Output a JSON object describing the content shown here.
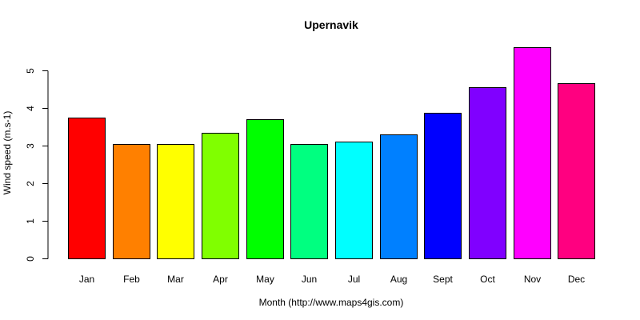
{
  "chart_data": {
    "type": "bar",
    "title": "Upernavik",
    "xlabel": "Month (http://www.maps4gis.com)",
    "ylabel": "Wind speed (m.s-1)",
    "categories": [
      "Jan",
      "Feb",
      "Mar",
      "Apr",
      "May",
      "Jun",
      "Jul",
      "Aug",
      "Sept",
      "Oct",
      "Nov",
      "Dec"
    ],
    "values": [
      3.75,
      3.05,
      3.05,
      3.35,
      3.7,
      3.05,
      3.1,
      3.3,
      3.88,
      4.55,
      5.62,
      4.65
    ],
    "colors": [
      "#FF0000",
      "#FF8000",
      "#FFFF00",
      "#80FF00",
      "#00FF00",
      "#00FF80",
      "#00FFFF",
      "#0080FF",
      "#0000FF",
      "#8000FF",
      "#FF00FF",
      "#FF0080"
    ],
    "yticks": [
      0,
      1,
      2,
      3,
      4,
      5
    ],
    "ylim": [
      0,
      5.62
    ],
    "grid": false,
    "legend": "none"
  }
}
